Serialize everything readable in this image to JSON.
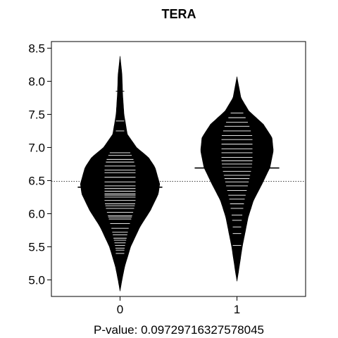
{
  "chart_data": {
    "type": "beanplot",
    "title": "TERA",
    "xlabel": "P-value: 0.09729716327578045",
    "ylabel": "",
    "categories": [
      "0",
      "1"
    ],
    "ylim": [
      4.75,
      8.6
    ],
    "yticks": [
      "5.0",
      "5.5",
      "6.0",
      "6.5",
      "7.0",
      "7.5",
      "8.0",
      "8.5"
    ],
    "overall_mean": 6.49,
    "grid": false,
    "legend": "none",
    "colors": {
      "bean": "#000000",
      "line": "#ffffff",
      "frame": "#000000"
    },
    "series": [
      {
        "name": "0",
        "mean": 6.4,
        "density_profile": [
          [
            4.83,
            0.0
          ],
          [
            5.0,
            0.03
          ],
          [
            5.2,
            0.07
          ],
          [
            5.5,
            0.16
          ],
          [
            5.8,
            0.3
          ],
          [
            6.05,
            0.46
          ],
          [
            6.3,
            0.58
          ],
          [
            6.45,
            0.6
          ],
          [
            6.7,
            0.53
          ],
          [
            6.85,
            0.43
          ],
          [
            7.0,
            0.25
          ],
          [
            7.2,
            0.11
          ],
          [
            7.5,
            0.06
          ],
          [
            7.8,
            0.04
          ],
          [
            8.1,
            0.03
          ],
          [
            8.38,
            0.0
          ]
        ],
        "observations": [
          5.4,
          5.45,
          5.48,
          5.52,
          5.56,
          5.6,
          5.63,
          5.68,
          5.72,
          5.78,
          5.85,
          5.92,
          5.95,
          5.97,
          6.02,
          6.08,
          6.12,
          6.15,
          6.2,
          6.25,
          6.28,
          6.3,
          6.34,
          6.38,
          6.42,
          6.48,
          6.55,
          6.62,
          6.66,
          6.72,
          6.78,
          6.82,
          6.88,
          6.92,
          7.25,
          7.4,
          7.85
        ]
      },
      {
        "name": "1",
        "mean": 6.69,
        "density_profile": [
          [
            4.98,
            0.0
          ],
          [
            5.1,
            0.02
          ],
          [
            5.3,
            0.05
          ],
          [
            5.5,
            0.08
          ],
          [
            5.7,
            0.12
          ],
          [
            5.95,
            0.17
          ],
          [
            6.2,
            0.25
          ],
          [
            6.45,
            0.38
          ],
          [
            6.7,
            0.5
          ],
          [
            6.95,
            0.55
          ],
          [
            7.15,
            0.53
          ],
          [
            7.35,
            0.4
          ],
          [
            7.55,
            0.18
          ],
          [
            7.75,
            0.06
          ],
          [
            8.07,
            0.0
          ]
        ],
        "observations": [
          5.4,
          5.52,
          5.7,
          5.8,
          5.9,
          5.98,
          6.08,
          6.15,
          6.22,
          6.28,
          6.35,
          6.42,
          6.48,
          6.53,
          6.58,
          6.64,
          6.7,
          6.75,
          6.8,
          6.85,
          6.92,
          6.98,
          7.05,
          7.12,
          7.18,
          7.25,
          7.32,
          7.38,
          7.45,
          7.52
        ]
      }
    ]
  }
}
